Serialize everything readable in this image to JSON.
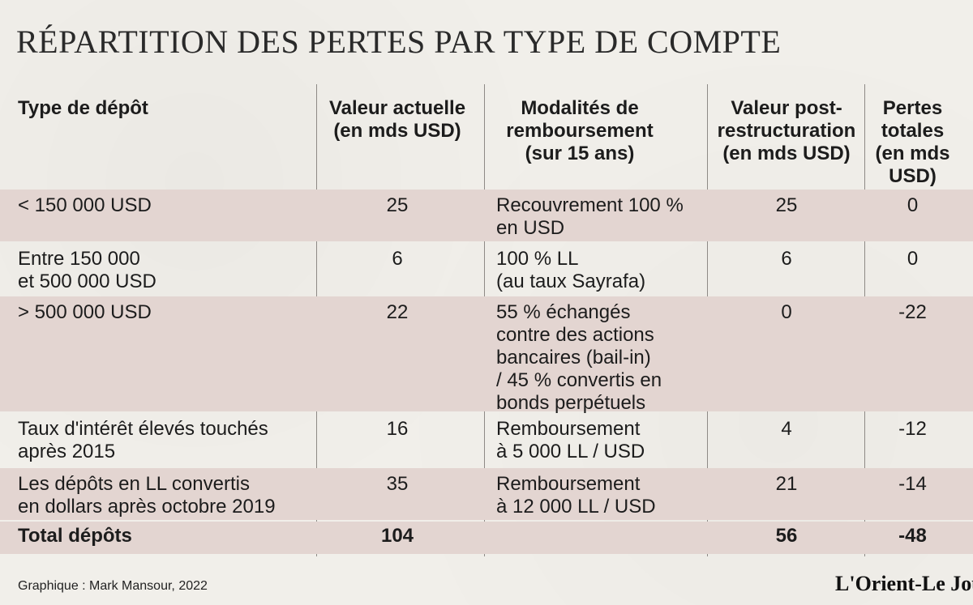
{
  "title": "RÉPARTITION DES PERTES PAR TYPE DE COMPTE",
  "credit": "Graphique : Mark Mansour, 2022",
  "logo_text": "L'Orient-Le Jour",
  "colors": {
    "band": "#e3d5d1",
    "background": "#f1efea",
    "divider": "#8e8a86"
  },
  "chart_data": {
    "type": "table",
    "title": "RÉPARTITION DES PERTES PAR TYPE DE COMPTE",
    "columns": [
      "Type de dépôt",
      "Valeur actuelle\n(en mds USD)",
      "Modalités de\nremboursement\n(sur 15 ans)",
      "Valeur post-\nrestructuration\n(en mds USD)",
      "Pertes\ntotales\n(en mds\nUSD)"
    ],
    "rows": [
      {
        "type": "< 150 000 USD",
        "actuelle": "25",
        "modalites": "Recouvrement 100 %\nen USD",
        "post": "25",
        "pertes": "0"
      },
      {
        "type": "Entre 150 000\net 500 000 USD",
        "actuelle": "6",
        "modalites": "100 % LL\n (au taux Sayrafa)",
        "post": "6",
        "pertes": "0"
      },
      {
        "type": "> 500 000 USD",
        "actuelle": "22",
        "modalites": "55 % échangés\ncontre  des actions\nbancaires (bail-in)\n/ 45 % convertis en\nbonds perpétuels",
        "post": "0",
        "pertes": "-22"
      },
      {
        "type": "Taux d'intérêt élevés touchés\naprès 2015",
        "actuelle": "16",
        "modalites": "Remboursement\nà 5 000 LL / USD",
        "post": "4",
        "pertes": "-12"
      },
      {
        "type": "Les dépôts en LL convertis\nen dollars après octobre 2019",
        "actuelle": "35",
        "modalites": "Remboursement\nà 12 000 LL / USD",
        "post": "21",
        "pertes": "-14"
      }
    ],
    "total": {
      "type": "Total dépôts",
      "actuelle": "104",
      "modalites": "",
      "post": "56",
      "pertes": "-48"
    }
  }
}
